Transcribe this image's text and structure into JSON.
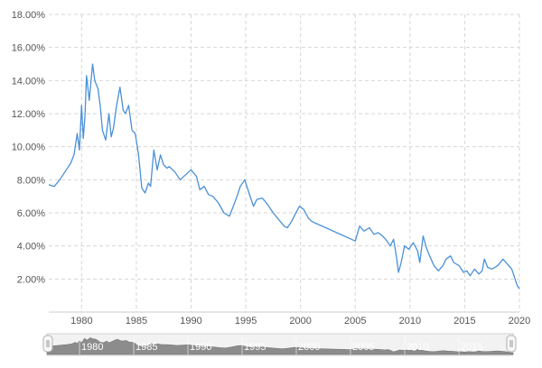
{
  "chart_data": {
    "type": "line",
    "title": "",
    "xlabel": "",
    "ylabel": "",
    "xlim": [
      1977,
      2020
    ],
    "ylim": [
      0,
      18
    ],
    "grid": true,
    "legend": "none",
    "y_ticks": [
      "2.00%",
      "4.00%",
      "6.00%",
      "8.00%",
      "10.00%",
      "12.00%",
      "14.00%",
      "16.00%",
      "18.00%"
    ],
    "x_ticks": [
      "1980",
      "1985",
      "1990",
      "1995",
      "2000",
      "2005",
      "2010",
      "2015",
      "2020"
    ],
    "line_color": "#4a90d9",
    "series": [
      {
        "x": [
          1977.0,
          1977.5,
          1978.0,
          1978.5,
          1979.0,
          1979.3,
          1979.6,
          1979.8,
          1980.0,
          1980.15,
          1980.3,
          1980.45,
          1980.7,
          1981.0,
          1981.2,
          1981.5,
          1981.7,
          1981.9,
          1982.2,
          1982.5,
          1982.7,
          1982.9,
          1983.2,
          1983.5,
          1983.8,
          1984.0,
          1984.3,
          1984.6,
          1984.9,
          1985.2,
          1985.5,
          1985.8,
          1986.1,
          1986.3,
          1986.6,
          1986.9,
          1987.2,
          1987.5,
          1987.8,
          1988.0,
          1988.5,
          1989.0,
          1989.5,
          1990.0,
          1990.5,
          1990.8,
          1991.2,
          1991.6,
          1992.0,
          1992.5,
          1993.0,
          1993.5,
          1993.8,
          1994.2,
          1994.5,
          1994.9,
          1995.3,
          1995.7,
          1996.0,
          1996.5,
          1997.0,
          1997.5,
          1998.0,
          1998.5,
          1998.8,
          1999.2,
          1999.5,
          1999.9,
          2000.3,
          2000.7,
          2001.0,
          2001.3,
          2005.0,
          2005.4,
          2005.8,
          2006.3,
          2006.7,
          2007.1,
          2007.5,
          2007.9,
          2008.2,
          2008.5,
          2008.8,
          2008.95,
          2009.2,
          2009.5,
          2009.9,
          2010.3,
          2010.7,
          2010.9,
          2011.2,
          2011.5,
          2011.8,
          2012.2,
          2012.6,
          2013.0,
          2013.3,
          2013.7,
          2014.0,
          2014.5,
          2014.9,
          2015.2,
          2015.5,
          2015.9,
          2016.3,
          2016.6,
          2016.8,
          2017.1,
          2017.5,
          2018.0,
          2018.5,
          2018.9,
          2019.3,
          2019.6,
          2019.8,
          2020.0
        ],
        "y": [
          7.7,
          7.6,
          8.0,
          8.5,
          9.0,
          9.5,
          10.8,
          9.8,
          12.5,
          10.5,
          11.8,
          14.3,
          12.8,
          15.0,
          14.0,
          13.5,
          12.5,
          11.0,
          10.4,
          12.0,
          10.6,
          11.1,
          12.5,
          13.6,
          12.2,
          12.0,
          12.5,
          11.0,
          10.8,
          9.5,
          7.5,
          7.2,
          7.8,
          7.6,
          9.8,
          8.6,
          9.5,
          8.9,
          8.7,
          8.8,
          8.5,
          8.0,
          8.3,
          8.6,
          8.2,
          7.4,
          7.6,
          7.1,
          7.0,
          6.6,
          6.0,
          5.8,
          6.3,
          7.0,
          7.6,
          8.0,
          7.2,
          6.4,
          6.8,
          6.9,
          6.5,
          6.0,
          5.6,
          5.2,
          5.1,
          5.5,
          5.9,
          6.4,
          6.2,
          5.7,
          5.5,
          5.4,
          4.3,
          5.2,
          4.9,
          5.1,
          4.7,
          4.8,
          4.6,
          4.3,
          4.0,
          4.4,
          3.2,
          2.4,
          3.0,
          4.0,
          3.8,
          4.2,
          3.7,
          3.0,
          4.6,
          3.9,
          3.4,
          2.8,
          2.5,
          2.8,
          3.2,
          3.4,
          3.0,
          2.8,
          2.4,
          2.5,
          2.2,
          2.6,
          2.3,
          2.5,
          3.2,
          2.7,
          2.6,
          2.8,
          3.2,
          2.9,
          2.6,
          2.0,
          1.6,
          1.4
        ]
      }
    ]
  }
}
